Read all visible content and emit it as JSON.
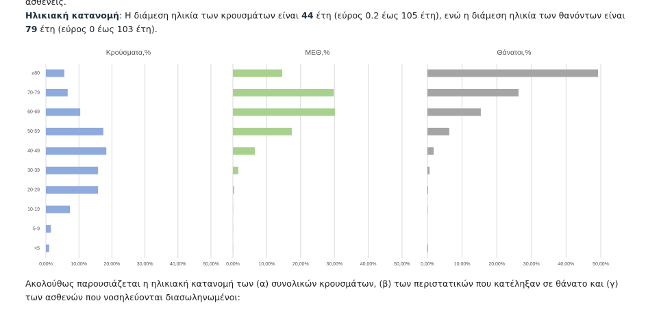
{
  "document": {
    "top_line": "ασθενείς.",
    "age_paragraph": [
      "Ηλικιακή κατανομή",
      ": Η διάμεση ηλικία των κρουσμάτων είναι ",
      "44",
      " έτη (εύρος 0.2 έως 105 έτη), ενώ η διάμεση ηλικία των θανόντων είναι ",
      "79",
      " έτη (εύρος 0 έως 103 έτη)."
    ],
    "next_paragraph": "Ακολούθως παρουσιάζεται η ηλικιακή κατανομή των (α) συνολικών κρουσμάτων, (β) των περιστατικών που κατέληξαν σε θάνατο και (γ) των ασθενών που νοσηλεύονται διασωληνωμένοι:"
  },
  "chart_data": [
    {
      "type": "hbar",
      "title": "Κρούσματα,%",
      "color": "#8faadc",
      "grid": true,
      "categories": [
        "≥80",
        "70-79",
        "60-69",
        "50-59",
        "40-49",
        "30-39",
        "20-29",
        "10-19",
        "5-9",
        "<5"
      ],
      "values": [
        5.6,
        6.6,
        10.4,
        17.4,
        18.3,
        15.8,
        15.8,
        7.3,
        1.5,
        1.0
      ],
      "xlim": [
        0,
        50
      ],
      "xticks": [
        {
          "value": 0,
          "label": "0,00%"
        },
        {
          "value": 10,
          "label": "10,00%"
        },
        {
          "value": 20,
          "label": "20,00%"
        },
        {
          "value": 30,
          "label": "30,00%"
        },
        {
          "value": 40,
          "label": "40,00%"
        },
        {
          "value": 50,
          "label": "50,00%"
        }
      ]
    },
    {
      "type": "hbar",
      "title": "ΜΕΘ,%",
      "color": "#a9d18e",
      "grid": true,
      "values": [
        14.6,
        29.8,
        30.2,
        17.4,
        6.5,
        1.6,
        0.4,
        0.1,
        0.1,
        0.1
      ],
      "xlim": [
        0,
        50
      ],
      "xticks": [
        {
          "value": 0,
          "label": "0,00%"
        },
        {
          "value": 10,
          "label": "10,00%"
        },
        {
          "value": 20,
          "label": "20,00%"
        },
        {
          "value": 30,
          "label": "30,00%"
        },
        {
          "value": 40,
          "label": "40,00%"
        },
        {
          "value": 50,
          "label": "50,00%"
        }
      ]
    },
    {
      "type": "hbar",
      "title": "Θάνατοι,%",
      "color": "#a5a5a5",
      "grid": true,
      "values": [
        49.2,
        26.3,
        15.4,
        6.3,
        1.8,
        0.6,
        0.2,
        0.1,
        0,
        0.2
      ],
      "xlim": [
        0,
        50
      ],
      "xticks": [
        {
          "value": 0,
          "label": "0,00%"
        },
        {
          "value": 10,
          "label": "10,00%"
        },
        {
          "value": 20,
          "label": "20,00%"
        },
        {
          "value": 30,
          "label": "30,00%"
        },
        {
          "value": 40,
          "label": "40,00%"
        },
        {
          "value": 50,
          "label": "50,00%"
        }
      ]
    }
  ]
}
